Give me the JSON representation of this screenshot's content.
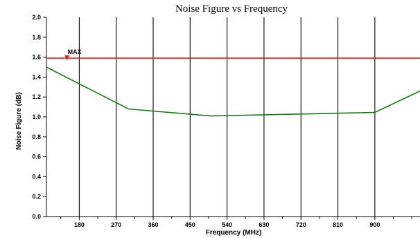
{
  "chart_data": {
    "type": "line",
    "title": "Noise Figure vs Frequency",
    "xlabel": "Frequency (MHz)",
    "ylabel": "Noise Figure (dB)",
    "xlim": [
      100,
      1010
    ],
    "ylim": [
      0,
      2.0
    ],
    "x_ticks": [
      180,
      270,
      360,
      450,
      540,
      630,
      720,
      810,
      900
    ],
    "y_ticks": [
      0.0,
      0.2,
      0.4,
      0.6,
      0.8,
      1.0,
      1.2,
      1.4,
      1.6,
      1.8,
      2.0
    ],
    "grid": {
      "vertical": true,
      "horizontal": false
    },
    "series": [
      {
        "color": "#1a7a1a",
        "x": [
          100,
          300,
          500,
          900,
          1010
        ],
        "y": [
          1.5,
          1.08,
          1.01,
          1.045,
          1.26
        ]
      }
    ],
    "reference_lines": [
      {
        "label": "MAX",
        "y": 1.59,
        "color": "#e02020",
        "marker_x": 150
      }
    ]
  }
}
